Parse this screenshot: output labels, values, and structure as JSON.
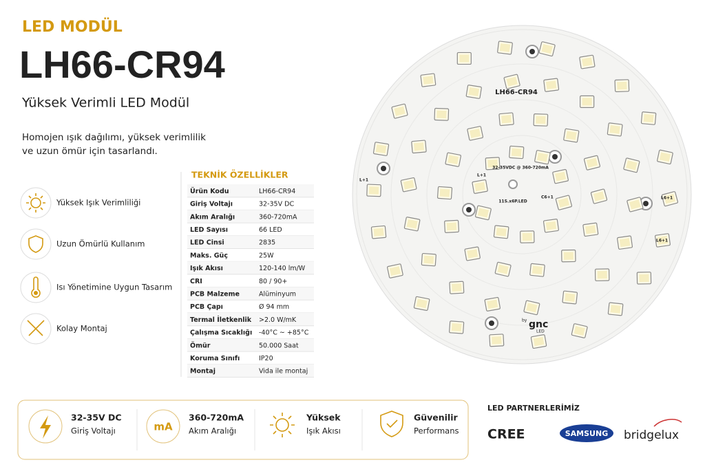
{
  "header": {
    "kicker": "LED MODÜL",
    "title": "LH66-CR94",
    "subtitle": "Yüksek Verimli LED Modül",
    "description": [
      "Homojen ışık dağılımı, yüksek verimlilik",
      "ve uzun ömür için tasarlandı."
    ]
  },
  "features": [
    "Yüksek Işık Verimliliği",
    "Uzun Ömürlü Kullanım",
    "Isı Yönetimine Uygun Tasarım",
    "Kolay Montaj"
  ],
  "specs": {
    "title": "TEKNİK ÖZELLİKLER",
    "rows": [
      [
        "Ürün Kodu",
        "LH66-CR94"
      ],
      [
        "Giriş Voltajı",
        "32-35V DC"
      ],
      [
        "Akım Aralığı",
        "360-720mA"
      ],
      [
        "LED Sayısı",
        "66 LED"
      ],
      [
        "LED Cinsi",
        "2835"
      ],
      [
        "Maks. Güç",
        "25W"
      ],
      [
        "Işık Akısı",
        "120-140 lm/W"
      ],
      [
        "CRI",
        "80 / 90+"
      ],
      [
        "PCB Malzeme",
        "Alüminyum"
      ],
      [
        "PCB Çapı",
        "Ø 94 mm"
      ],
      [
        "Termal İletkenlik",
        ">2.0 W/mK"
      ],
      [
        "Çalışma Sıcaklığı",
        "-40°C ~ +85°C"
      ],
      [
        "Ömür",
        "50.000 Saat"
      ],
      [
        "Koruma Sınıfı",
        "IP20"
      ],
      [
        "Montaj",
        "Vida ile montaj"
      ]
    ]
  },
  "board": {
    "model": "LH66-CR94",
    "rating": "32-35VDC @ 360-720mA",
    "config": "11S.x6P.LED",
    "brand_prefix": "by",
    "brand": "gnc",
    "brand_suffix": "LED",
    "labels": [
      "L+1",
      "L+1",
      "C6+1",
      "L6+1",
      "L6+1"
    ]
  },
  "highlights": [
    {
      "title": "32-35V DC",
      "subtitle": "Giriş Voltajı"
    },
    {
      "icon": "mA",
      "title": "360-720mA",
      "subtitle": "Akım Aralığı"
    },
    {
      "title": "Yüksek",
      "subtitle": "Işık Akısı"
    },
    {
      "title": "Güvenilir",
      "subtitle": "Performans"
    }
  ],
  "partners": {
    "title": "LED PARTNERLERİMİZ",
    "logos": [
      "CREE",
      "SAMSUNG",
      "bridgelux"
    ]
  }
}
